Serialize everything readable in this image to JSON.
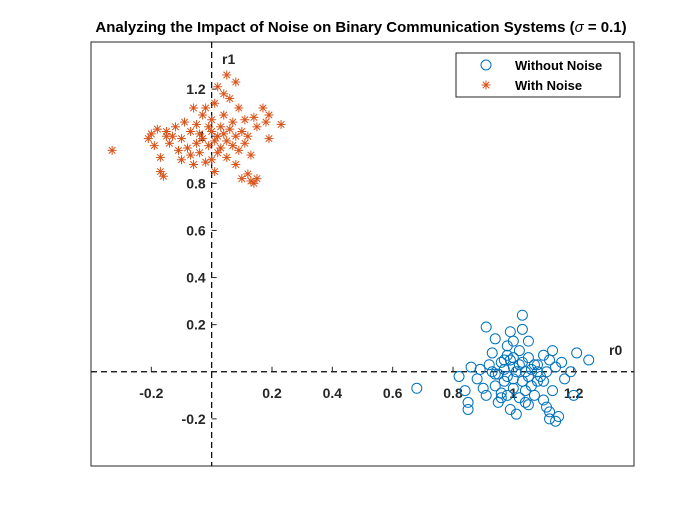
{
  "chart_data": {
    "type": "scatter",
    "title_prefix": "Analyzing the Impact of Noise on Binary Communication Systems (",
    "title_symbol": "σ",
    "title_suffix": " = 0.1)",
    "xlabel": "r0",
    "ylabel": "r1",
    "xlim": [
      -0.4,
      1.4
    ],
    "ylim": [
      -0.4,
      1.4
    ],
    "xticks": [
      -0.2,
      0.2,
      0.4,
      0.6,
      0.8,
      1,
      1.2
    ],
    "xtick_labels": [
      "-0.2",
      "0.2",
      "0.4",
      "0.6",
      "0.8",
      "1",
      "1.2"
    ],
    "yticks": [
      -0.2,
      0.2,
      0.4,
      0.6,
      0.8,
      1,
      1.2
    ],
    "ytick_labels": [
      "-0.2",
      "0.2",
      "0.4",
      "0.6",
      "0.8",
      "1",
      "1.2"
    ],
    "grid": false,
    "box": true,
    "legend_position": "top-right",
    "series": [
      {
        "name": "Without Noise",
        "marker": "circle",
        "color": "#0072BD",
        "points": [
          [
            0.86,
            0.02
          ],
          [
            0.84,
            -0.08
          ],
          [
            0.82,
            -0.02
          ],
          [
            0.85,
            -0.13
          ],
          [
            0.85,
            -0.16
          ],
          [
            0.88,
            -0.03
          ],
          [
            0.89,
            0.01
          ],
          [
            0.9,
            -0.07
          ],
          [
            0.91,
            -0.1
          ],
          [
            0.92,
            0.03
          ],
          [
            0.93,
            0.08
          ],
          [
            0.93,
            0.0
          ],
          [
            0.94,
            -0.06
          ],
          [
            0.94,
            0.14
          ],
          [
            0.95,
            -0.01
          ],
          [
            0.95,
            -0.13
          ],
          [
            0.96,
            0.04
          ],
          [
            0.96,
            -0.09
          ],
          [
            0.97,
            0.01
          ],
          [
            0.97,
            -0.04
          ],
          [
            0.98,
            0.11
          ],
          [
            0.98,
            0.07
          ],
          [
            0.98,
            -0.02
          ],
          [
            0.98,
            -0.1
          ],
          [
            0.99,
            0.05
          ],
          [
            0.99,
            0.17
          ],
          [
            1.0,
            -0.03
          ],
          [
            1.0,
            0.06
          ],
          [
            1.0,
            -0.07
          ],
          [
            1.0,
            0.13
          ],
          [
            1.01,
            -0.18
          ],
          [
            1.01,
            0.0
          ],
          [
            1.02,
            0.03
          ],
          [
            1.02,
            0.09
          ],
          [
            1.02,
            -0.11
          ],
          [
            1.03,
            0.04
          ],
          [
            1.03,
            -0.04
          ],
          [
            1.03,
            0.18
          ],
          [
            1.04,
            0.0
          ],
          [
            1.04,
            -0.08
          ],
          [
            1.05,
            -0.02
          ],
          [
            1.05,
            0.06
          ],
          [
            1.05,
            -0.14
          ],
          [
            1.06,
            0.01
          ],
          [
            1.06,
            -0.06
          ],
          [
            1.07,
            0.03
          ],
          [
            1.07,
            -0.1
          ],
          [
            1.08,
            -0.04
          ],
          [
            1.08,
            0.0
          ],
          [
            1.09,
            -0.02
          ],
          [
            1.1,
            0.07
          ],
          [
            1.1,
            -0.04
          ],
          [
            1.1,
            -0.12
          ],
          [
            1.11,
            0.0
          ],
          [
            1.11,
            -0.15
          ],
          [
            1.12,
            0.05
          ],
          [
            1.12,
            -0.17
          ],
          [
            1.12,
            -0.2
          ],
          [
            1.13,
            0.09
          ],
          [
            1.13,
            -0.08
          ],
          [
            1.14,
            0.02
          ],
          [
            1.14,
            -0.21
          ],
          [
            1.15,
            -0.19
          ],
          [
            1.16,
            0.04
          ],
          [
            1.17,
            -0.03
          ],
          [
            1.19,
            0.0
          ],
          [
            1.2,
            -0.1
          ],
          [
            1.21,
            0.08
          ],
          [
            1.25,
            0.05
          ],
          [
            0.68,
            -0.07
          ],
          [
            1.03,
            0.24
          ],
          [
            0.99,
            -0.16
          ],
          [
            0.91,
            0.19
          ],
          [
            1.05,
            0.13
          ],
          [
            0.96,
            -0.11
          ],
          [
            1.0,
            0.02
          ],
          [
            0.97,
            0.05
          ],
          [
            1.08,
            0.03
          ],
          [
            1.04,
            -0.13
          ],
          [
            0.94,
            -0.01
          ]
        ]
      },
      {
        "name": "With Noise",
        "marker": "asterisk",
        "color": "#D95319",
        "points": [
          [
            -0.33,
            0.94
          ],
          [
            -0.21,
            0.99
          ],
          [
            -0.2,
            1.01
          ],
          [
            -0.19,
            0.96
          ],
          [
            -0.18,
            1.03
          ],
          [
            -0.17,
            0.91
          ],
          [
            -0.17,
            0.85
          ],
          [
            -0.16,
            0.83
          ],
          [
            -0.15,
            1.02
          ],
          [
            -0.14,
            0.97
          ],
          [
            -0.13,
            1.0
          ],
          [
            -0.12,
            1.04
          ],
          [
            -0.11,
            0.94
          ],
          [
            -0.1,
            0.9
          ],
          [
            -0.1,
            0.99
          ],
          [
            -0.09,
            1.06
          ],
          [
            -0.08,
            0.95
          ],
          [
            -0.07,
            1.02
          ],
          [
            -0.07,
            0.92
          ],
          [
            -0.06,
            0.88
          ],
          [
            -0.05,
            1.05
          ],
          [
            -0.05,
            0.97
          ],
          [
            -0.04,
            1.01
          ],
          [
            -0.04,
            0.93
          ],
          [
            -0.03,
            1.09
          ],
          [
            -0.03,
            0.99
          ],
          [
            -0.02,
            1.12
          ],
          [
            -0.02,
            0.89
          ],
          [
            -0.01,
            1.04
          ],
          [
            -0.01,
            0.96
          ],
          [
            0.0,
            1.02
          ],
          [
            0.0,
            0.9
          ],
          [
            0.0,
            1.07
          ],
          [
            0.01,
            0.98
          ],
          [
            0.01,
            1.14
          ],
          [
            0.02,
            1.0
          ],
          [
            0.02,
            0.93
          ],
          [
            0.02,
            1.21
          ],
          [
            0.03,
            1.04
          ],
          [
            0.03,
            0.95
          ],
          [
            0.04,
            1.01
          ],
          [
            0.04,
            1.09
          ],
          [
            0.05,
            0.98
          ],
          [
            0.05,
            0.91
          ],
          [
            0.06,
            1.03
          ],
          [
            0.06,
            1.16
          ],
          [
            0.07,
            0.96
          ],
          [
            0.07,
            1.06
          ],
          [
            0.08,
            1.0
          ],
          [
            0.08,
            0.88
          ],
          [
            0.09,
            1.12
          ],
          [
            0.09,
            0.94
          ],
          [
            0.1,
            1.02
          ],
          [
            0.1,
            0.82
          ],
          [
            0.11,
            0.97
          ],
          [
            0.11,
            1.07
          ],
          [
            0.12,
            0.84
          ],
          [
            0.12,
            1.0
          ],
          [
            0.13,
            0.92
          ],
          [
            0.13,
            0.81
          ],
          [
            0.14,
            1.08
          ],
          [
            0.14,
            0.8
          ],
          [
            0.15,
            1.04
          ],
          [
            0.15,
            0.82
          ],
          [
            0.17,
            1.12
          ],
          [
            0.18,
            1.06
          ],
          [
            0.19,
            0.99
          ],
          [
            0.19,
            1.09
          ],
          [
            0.23,
            1.05
          ],
          [
            0.05,
            1.26
          ],
          [
            0.04,
            1.18
          ],
          [
            -0.06,
            1.12
          ],
          [
            -0.15,
            1.0
          ],
          [
            0.08,
            1.23
          ],
          [
            0.01,
            0.85
          ]
        ]
      }
    ]
  }
}
